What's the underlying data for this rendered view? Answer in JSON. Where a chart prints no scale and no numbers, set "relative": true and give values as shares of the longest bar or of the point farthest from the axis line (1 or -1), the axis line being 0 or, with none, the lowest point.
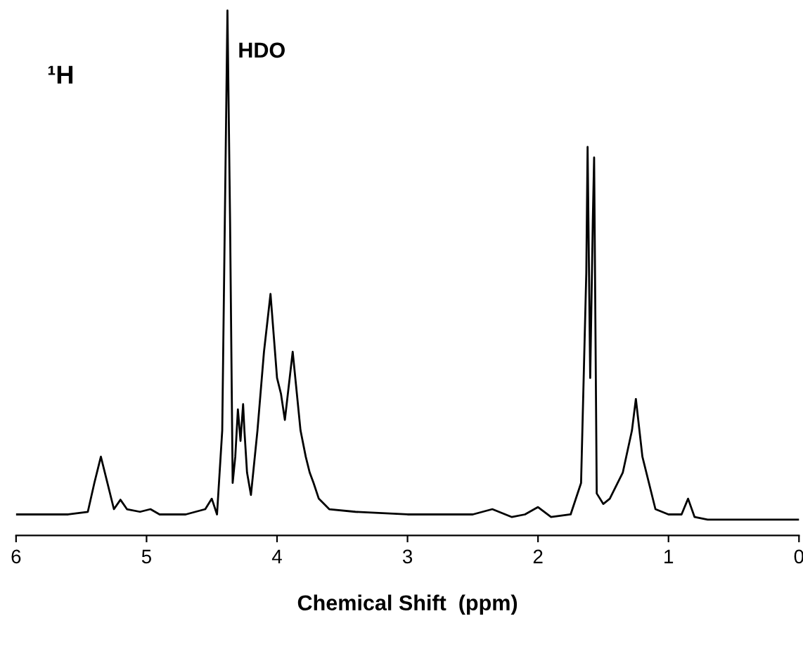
{
  "chart_data": {
    "type": "line",
    "relative": true,
    "xlabel": "Chemical Shift  (ppm)",
    "xlim": [
      6,
      0
    ],
    "xticks": [
      6,
      5,
      4,
      3,
      2,
      1,
      0
    ],
    "grid": false,
    "marker": "none",
    "line_style": "solid",
    "annotations": [
      {
        "text": "HDO",
        "x": 4.38,
        "y": 1.0
      },
      "¹H"
    ],
    "series": [
      {
        "color": "#000000",
        "x": [
          6.0,
          5.6,
          5.45,
          5.4,
          5.35,
          5.3,
          5.25,
          5.2,
          5.15,
          5.05,
          4.97,
          4.9,
          4.7,
          4.55,
          4.5,
          4.46,
          4.42,
          4.4,
          4.38,
          4.36,
          4.34,
          4.32,
          4.3,
          4.28,
          4.26,
          4.25,
          4.23,
          4.2,
          4.15,
          4.1,
          4.05,
          4.0,
          3.97,
          3.94,
          3.88,
          3.82,
          3.78,
          3.75,
          3.72,
          3.68,
          3.6,
          3.4,
          3.0,
          2.5,
          2.35,
          2.2,
          2.1,
          2.0,
          1.9,
          1.75,
          1.67,
          1.63,
          1.62,
          1.6,
          1.58,
          1.57,
          1.55,
          1.5,
          1.45,
          1.35,
          1.28,
          1.25,
          1.2,
          1.1,
          1.0,
          0.9,
          0.85,
          0.8,
          0.7,
          0.3,
          0.0
        ],
        "values": [
          0.04,
          0.04,
          0.045,
          0.1,
          0.15,
          0.1,
          0.05,
          0.068,
          0.05,
          0.045,
          0.05,
          0.04,
          0.04,
          0.05,
          0.07,
          0.04,
          0.2,
          0.6,
          1.0,
          0.6,
          0.1,
          0.15,
          0.24,
          0.18,
          0.25,
          0.2,
          0.12,
          0.077,
          0.2,
          0.35,
          0.46,
          0.3,
          0.27,
          0.22,
          0.35,
          0.2,
          0.15,
          0.12,
          0.1,
          0.07,
          0.05,
          0.045,
          0.04,
          0.04,
          0.05,
          0.035,
          0.04,
          0.054,
          0.035,
          0.04,
          0.1,
          0.5,
          0.74,
          0.3,
          0.6,
          0.72,
          0.08,
          0.06,
          0.07,
          0.12,
          0.2,
          0.26,
          0.15,
          0.05,
          0.04,
          0.04,
          0.07,
          0.035,
          0.03,
          0.03,
          0.03
        ]
      }
    ]
  }
}
